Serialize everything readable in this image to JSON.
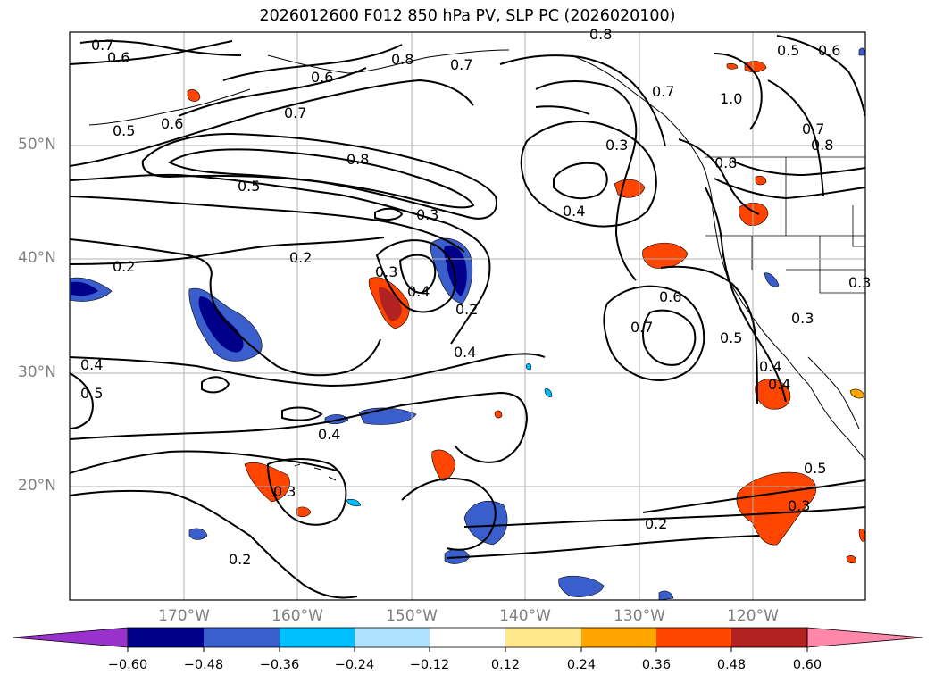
{
  "title": "2026012600 F012 850 hPa PV, SLP PC (2026020100)",
  "lat_labels": [
    "50°N",
    "40°N",
    "30°N",
    "20°N"
  ],
  "lon_labels": [
    "170°W",
    "160°W",
    "150°W",
    "140°W",
    "130°W",
    "120°W"
  ],
  "colorbar": {
    "ticks": [
      "−0.60",
      "−0.48",
      "−0.36",
      "−0.24",
      "−0.12",
      "0.12",
      "0.24",
      "0.36",
      "0.48",
      "0.60"
    ],
    "colors": [
      "#9932cc",
      "#00008b",
      "#3a5fcd",
      "#00bfff",
      "#b0e2ff",
      "#ffffff",
      "#ffe78c",
      "#ffa500",
      "#ff4500",
      "#b22222",
      "#ff88aa"
    ]
  },
  "contour_labels": [
    "0.7",
    "0.6",
    "0.5",
    "0.6",
    "0.6",
    "0.7",
    "0.8",
    "0.5",
    "0.3",
    "0.2",
    "0.2",
    "0.3",
    "0.4",
    "0.2",
    "0.4",
    "0.4",
    "0.5",
    "0.4",
    "0.4",
    "0.3",
    "0.6",
    "0.7",
    "0.5",
    "0.4",
    "0.2",
    "0.3",
    "0.2",
    "0.8",
    "0.7",
    "0.7",
    "1.0",
    "0.5",
    "0.6",
    "0.7",
    "0.8",
    "0.8",
    "0.3",
    "0.3",
    "0.4",
    "0.5",
    "0.8",
    "0.3"
  ],
  "colors": {
    "contour": "#000000",
    "grid": "#b0b0b0",
    "axis_label": "#808080"
  }
}
